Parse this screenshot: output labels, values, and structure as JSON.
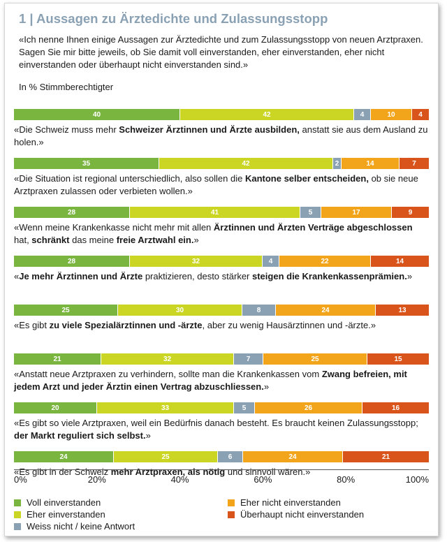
{
  "title": "1 | Aussagen zu Ärztedichte und Zulassungsstopp",
  "intro": "«Ich nenne Ihnen einige Aussagen zur Ärztedichte und zum Zulassungsstopp von neuen Arztpraxen. Sagen Sie mir bitte jeweils, ob Sie damit voll einverstanden, eher einverstanden, eher nicht einverstanden oder überhaupt nicht einverstanden sind.»",
  "unit_label": "In % Stimmberechtigter",
  "colors": {
    "voll": "#7ab540",
    "eher": "#cbd624",
    "weiss": "#8aa1b4",
    "eher_nicht": "#f2a51a",
    "ueberhaupt_nicht": "#d9541b"
  },
  "chart_data": {
    "type": "bar",
    "orientation": "horizontal-stacked-100",
    "title": "1 | Aussagen zu Ärztedichte und Zulassungsstopp",
    "xlabel": "",
    "ylabel": "",
    "xlim": [
      0,
      100
    ],
    "x_ticks": [
      "0%",
      "20%",
      "40%",
      "60%",
      "80%",
      "100%"
    ],
    "series": [
      {
        "key": "voll",
        "name": "Voll einverstanden"
      },
      {
        "key": "eher",
        "name": "Eher einverstanden"
      },
      {
        "key": "weiss",
        "name": "Weiss nicht / keine Antwort"
      },
      {
        "key": "eher_nicht",
        "name": "Eher nicht einverstanden"
      },
      {
        "key": "ueberhaupt_nicht",
        "name": "Überhaupt nicht einverstanden"
      }
    ],
    "categories": [
      {
        "values": [
          40,
          42,
          4,
          10,
          4
        ],
        "statement": [
          {
            "t": "«Die Schweiz muss mehr "
          },
          {
            "t": "Schweizer Ärztinnen und Ärzte ausbilden,",
            "b": true
          },
          {
            "t": " anstatt sie aus dem Ausland zu holen.»"
          }
        ]
      },
      {
        "values": [
          35,
          42,
          2,
          14,
          7
        ],
        "statement": [
          {
            "t": "«Die Situation ist regional unterschiedlich, also sollen die "
          },
          {
            "t": "Kantone selber entscheiden,",
            "b": true
          },
          {
            "t": " ob sie neue Arztpraxen zulassen oder verbieten wollen.»"
          }
        ]
      },
      {
        "values": [
          28,
          41,
          5,
          17,
          9
        ],
        "statement": [
          {
            "t": "«Wenn meine Krankenkasse nicht mehr mit allen "
          },
          {
            "t": "Ärztinnen und Ärzten Verträge abgeschlossen",
            "b": true
          },
          {
            "t": " hat, "
          },
          {
            "t": "schränkt",
            "b": true
          },
          {
            "t": " das meine "
          },
          {
            "t": "freie Arztwahl ein.",
            "b": true
          },
          {
            "t": "»"
          }
        ]
      },
      {
        "values": [
          28,
          32,
          4,
          22,
          14
        ],
        "statement": [
          {
            "t": "«"
          },
          {
            "t": "Je mehr Ärztinnen und Ärzte",
            "b": true
          },
          {
            "t": " praktizieren, desto stärker "
          },
          {
            "t": "steigen die Krankenkassenprämien.",
            "b": true
          },
          {
            "t": "»"
          }
        ]
      },
      {
        "values": [
          25,
          30,
          8,
          24,
          13
        ],
        "statement": [
          {
            "t": "«Es gibt "
          },
          {
            "t": "zu viele Spezialärztinnen und -ärzte",
            "b": true
          },
          {
            "t": ", aber zu wenig Hausärztinnen und  -ärzte.»"
          }
        ]
      },
      {
        "values": [
          21,
          32,
          7,
          25,
          15
        ],
        "statement": [
          {
            "t": "«Anstatt neue Arztpraxen zu verhindern, sollte man die Krankenkassen vom "
          },
          {
            "t": "Zwang befreien, mit jedem Arzt und jeder Ärztin einen Vertrag abzuschliessen.",
            "b": true
          },
          {
            "t": "»"
          }
        ]
      },
      {
        "values": [
          20,
          33,
          5,
          26,
          16
        ],
        "statement": [
          {
            "t": "«Es gibt so viele Arztpraxen, weil ein Bedürfnis danach besteht. Es braucht keinen Zulassungsstopp; "
          },
          {
            "t": "der Markt reguliert sich selbst.",
            "b": true
          },
          {
            "t": "»"
          }
        ]
      },
      {
        "values": [
          24,
          25,
          6,
          24,
          21
        ],
        "statement": [
          {
            "t": "«Es gibt in der Schweiz "
          },
          {
            "t": "mehr Arztpraxen, als nötig",
            "b": true
          },
          {
            "t": " und sinnvoll wären.»"
          }
        ]
      }
    ]
  }
}
